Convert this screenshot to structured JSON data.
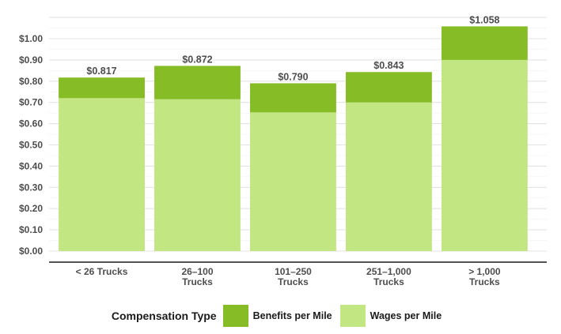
{
  "chart_data": {
    "type": "bar",
    "stacked": true,
    "categories": [
      [
        "< 26 Trucks"
      ],
      [
        "26–100",
        "Trucks"
      ],
      [
        "101–250",
        "Trucks"
      ],
      [
        "251–1,000",
        "Trucks"
      ],
      [
        "> 1,000",
        "Trucks"
      ]
    ],
    "series": [
      {
        "name": "Wages per Mile",
        "values": [
          0.72,
          0.715,
          0.653,
          0.7,
          0.9
        ],
        "color": "#c2e682"
      },
      {
        "name": "Benefits per Mile",
        "values": [
          0.097,
          0.157,
          0.137,
          0.143,
          0.158
        ],
        "color": "#86bc25"
      }
    ],
    "totals": [
      "$0.817",
      "$0.872",
      "$0.790",
      "$0.843",
      "$1.058"
    ],
    "yticks": [
      "$0.00",
      "$0.10",
      "$0.20",
      "$0.30",
      "$0.40",
      "$0.50",
      "$0.60",
      "$0.70",
      "$0.80",
      "$0.90",
      "$1.00"
    ],
    "ylim": [
      0,
      1.11
    ],
    "grid": true,
    "legend": {
      "title": "Compensation Type",
      "position": "bottom",
      "items": [
        {
          "label": "Benefits per Mile",
          "color": "#86bc25"
        },
        {
          "label": "Wages per Mile",
          "color": "#c2e682"
        }
      ]
    }
  }
}
